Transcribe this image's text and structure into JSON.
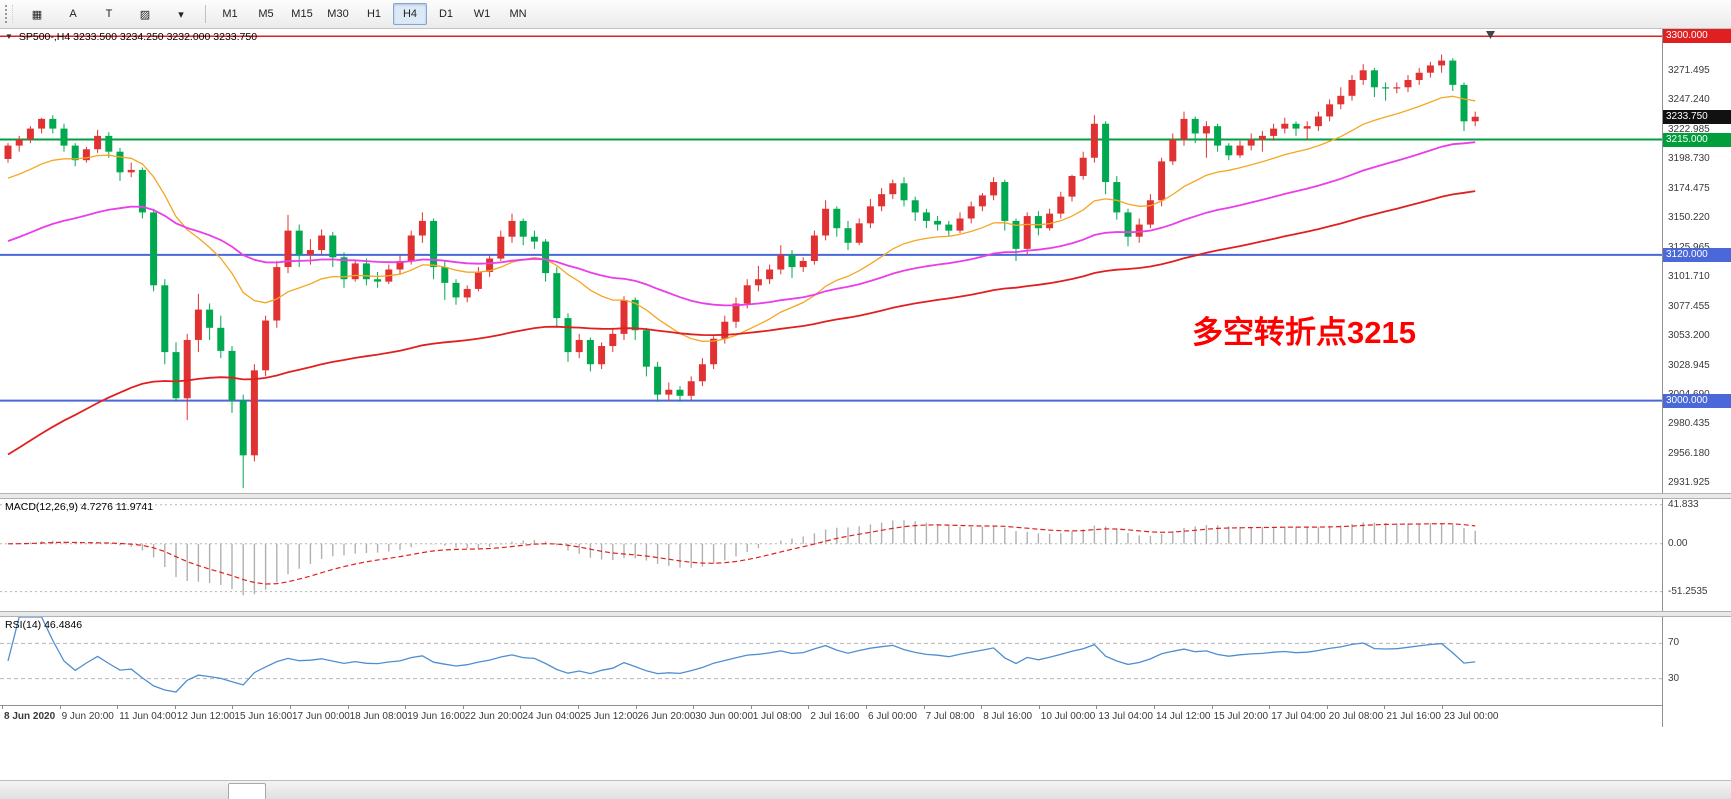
{
  "toolbar": {
    "icons": [
      {
        "name": "window-grid-icon",
        "glyph": "▦"
      },
      {
        "name": "text-a-icon",
        "glyph": "A"
      },
      {
        "name": "template-t-icon",
        "glyph": "T"
      },
      {
        "name": "colors-icon",
        "glyph": "▨"
      },
      {
        "name": "colors-dropdown-caret-icon",
        "glyph": "▾"
      }
    ],
    "timeframes": [
      "M1",
      "M5",
      "M15",
      "M30",
      "H1",
      "H4",
      "D1",
      "W1",
      "MN"
    ],
    "active_timeframe": "H4"
  },
  "main_chart": {
    "title_caret": "▼",
    "symbol": "SP500-,H4",
    "ohlc": "3233.500 3234.250 3232.000 3233.750",
    "annotation": "多空转折点3215",
    "annotation_color": "#ff0000"
  },
  "macd": {
    "label": "MACD(12,26,9) 4.7276 11.9741",
    "values": {
      "macd": "4.7276",
      "signal": "11.9741"
    },
    "axis": [
      {
        "v": 41.833,
        "label": "41.833"
      },
      {
        "v": 0,
        "label": "0.00"
      },
      {
        "v": -51.2535,
        "label": "-51.2535"
      }
    ]
  },
  "rsi": {
    "label": "RSI(14) 46.4846",
    "value": "46.4846",
    "axis": [
      {
        "v": 70,
        "label": "70"
      },
      {
        "v": 30,
        "label": "30"
      }
    ]
  },
  "price_axis": {
    "tick_start": 3295.75,
    "tick_step": 24.255,
    "tick_count": 16,
    "badges": [
      {
        "value": "3300.000",
        "price": 3300,
        "bg": "#e02020"
      },
      {
        "value": "3233.750",
        "price": 3233.75,
        "bg": "#111111"
      },
      {
        "value": "3215.000",
        "price": 3215,
        "bg": "#009f3c"
      },
      {
        "value": "3120.000",
        "price": 3120,
        "bg": "#4a68d8"
      },
      {
        "value": "3000.000",
        "price": 3000,
        "bg": "#4a68d8"
      }
    ]
  },
  "hlines": [
    {
      "price": 3300,
      "color": "#e02020",
      "width": 1.5
    },
    {
      "price": 3215,
      "color": "#009f3c",
      "width": 2
    },
    {
      "price": 3120,
      "color": "#4a68d8",
      "width": 2
    },
    {
      "price": 3000,
      "color": "#4a68d8",
      "width": 2
    }
  ],
  "colors": {
    "bull": "#e03232",
    "bear": "#00a94f",
    "ma_fast": "#f5a623",
    "ma_mid": "#e93ee9",
    "ma_slow": "#e02020",
    "macd_hist": "#b0b0b0",
    "macd_signal": "#e02020",
    "rsi_line": "#4f8fd0",
    "level_line": "#b5b5b5"
  },
  "time_axis": {
    "labels": [
      "8 Jun 2020",
      "9 Jun 20:00",
      "11 Jun 04:00",
      "12 Jun 12:00",
      "15 Jun 16:00",
      "17 Jun 00:00",
      "18 Jun 08:00",
      "19 Jun 16:00",
      "22 Jun 20:00",
      "24 Jun 04:00",
      "25 Jun 12:00",
      "26 Jun 20:00",
      "30 Jun 00:00",
      "1 Jul 08:00",
      "2 Jul 16:00",
      "6 Jul 00:00",
      "7 Jul 08:00",
      "8 Jul 16:00",
      "10 Jul 00:00",
      "13 Jul 04:00",
      "14 Jul 12:00",
      "15 Jul 20:00",
      "17 Jul 04:00",
      "20 Jul 08:00",
      "21 Jul 16:00",
      "23 Jul 00:00"
    ]
  },
  "chart_data": {
    "type": "candlestick",
    "symbol": "SP500-",
    "timeframe": "H4",
    "title": "SP500-,H4",
    "current_ohlc": [
      3233.5,
      3234.25,
      3232.0,
      3233.75
    ],
    "y_range": [
      2924,
      3306
    ],
    "horizontal_levels": [
      3300,
      3215,
      3120,
      3000
    ],
    "annotation": "多空转折点3215",
    "indicators": [
      {
        "name": "MACD",
        "params": "12,26,9",
        "values": [
          4.7276,
          11.9741
        ],
        "ylim": [
          -51.2535,
          41.833
        ]
      },
      {
        "name": "RSI",
        "params": "14",
        "value": 46.4846,
        "levels": [
          30,
          70
        ]
      }
    ],
    "moving_averages": [
      {
        "name": "fast",
        "period": 18,
        "seed": 3180,
        "width": 1.3
      },
      {
        "name": "mid",
        "period": 48,
        "seed": 3128,
        "width": 1.8
      },
      {
        "name": "slow",
        "period": 90,
        "seed": 2950,
        "width": 1.8
      }
    ],
    "x_labels": [
      "8 Jun 2020",
      "9 Jun 20:00",
      "11 Jun 04:00",
      "12 Jun 12:00",
      "15 Jun 16:00",
      "17 Jun 00:00",
      "18 Jun 08:00",
      "19 Jun 16:00",
      "22 Jun 20:00",
      "24 Jun 04:00",
      "25 Jun 12:00",
      "26 Jun 20:00",
      "30 Jun 00:00",
      "1 Jul 08:00",
      "2 Jul 16:00",
      "6 Jul 00:00",
      "7 Jul 08:00",
      "8 Jul 16:00",
      "10 Jul 00:00",
      "13 Jul 04:00",
      "14 Jul 12:00",
      "15 Jul 20:00",
      "17 Jul 04:00",
      "20 Jul 08:00",
      "21 Jul 16:00",
      "23 Jul 00:00"
    ],
    "candles": [
      [
        3199,
        3212,
        3196,
        3210
      ],
      [
        3210,
        3218,
        3205,
        3215
      ],
      [
        3215,
        3226,
        3212,
        3224
      ],
      [
        3224,
        3233,
        3220,
        3232
      ],
      [
        3232,
        3235,
        3220,
        3224
      ],
      [
        3224,
        3228,
        3205,
        3210
      ],
      [
        3210,
        3212,
        3193,
        3198
      ],
      [
        3198,
        3209,
        3196,
        3207
      ],
      [
        3207,
        3223,
        3204,
        3218
      ],
      [
        3218,
        3221,
        3200,
        3205
      ],
      [
        3205,
        3208,
        3181,
        3188
      ],
      [
        3188,
        3196,
        3184,
        3190
      ],
      [
        3190,
        3192,
        3150,
        3155
      ],
      [
        3155,
        3158,
        3090,
        3095
      ],
      [
        3095,
        3100,
        3030,
        3040
      ],
      [
        3040,
        3048,
        2999,
        3002
      ],
      [
        3002,
        3055,
        2984,
        3050
      ],
      [
        3050,
        3088,
        3040,
        3075
      ],
      [
        3075,
        3080,
        3050,
        3060
      ],
      [
        3060,
        3070,
        3035,
        3041
      ],
      [
        3041,
        3045,
        2990,
        3000
      ],
      [
        3000,
        3005,
        2928,
        2955
      ],
      [
        2955,
        3030,
        2950,
        3025
      ],
      [
        3025,
        3070,
        3020,
        3066
      ],
      [
        3066,
        3115,
        3060,
        3110
      ],
      [
        3110,
        3153,
        3105,
        3140
      ],
      [
        3140,
        3145,
        3110,
        3120
      ],
      [
        3120,
        3133,
        3112,
        3124
      ],
      [
        3124,
        3141,
        3120,
        3136
      ],
      [
        3136,
        3139,
        3110,
        3118
      ],
      [
        3118,
        3122,
        3093,
        3100
      ],
      [
        3100,
        3115,
        3098,
        3113
      ],
      [
        3113,
        3117,
        3095,
        3100
      ],
      [
        3100,
        3106,
        3093,
        3098
      ],
      [
        3098,
        3112,
        3096,
        3108
      ],
      [
        3108,
        3120,
        3104,
        3115
      ],
      [
        3115,
        3140,
        3112,
        3136
      ],
      [
        3136,
        3155,
        3130,
        3148
      ],
      [
        3148,
        3150,
        3100,
        3110
      ],
      [
        3110,
        3115,
        3083,
        3097
      ],
      [
        3097,
        3100,
        3079,
        3085
      ],
      [
        3085,
        3095,
        3081,
        3092
      ],
      [
        3092,
        3110,
        3090,
        3106
      ],
      [
        3106,
        3120,
        3102,
        3117
      ],
      [
        3117,
        3140,
        3115,
        3135
      ],
      [
        3135,
        3154,
        3130,
        3148
      ],
      [
        3148,
        3150,
        3128,
        3135
      ],
      [
        3135,
        3140,
        3125,
        3131
      ],
      [
        3131,
        3133,
        3098,
        3105
      ],
      [
        3105,
        3110,
        3060,
        3068
      ],
      [
        3068,
        3072,
        3032,
        3040
      ],
      [
        3040,
        3055,
        3035,
        3050
      ],
      [
        3050,
        3052,
        3024,
        3030
      ],
      [
        3030,
        3048,
        3026,
        3045
      ],
      [
        3045,
        3060,
        3040,
        3055
      ],
      [
        3055,
        3086,
        3050,
        3083
      ],
      [
        3083,
        3085,
        3050,
        3058
      ],
      [
        3058,
        3060,
        3020,
        3028
      ],
      [
        3028,
        3032,
        2999,
        3005
      ],
      [
        3005,
        3015,
        3000,
        3009
      ],
      [
        3009,
        3012,
        2999,
        3004
      ],
      [
        3004,
        3020,
        3000,
        3016
      ],
      [
        3016,
        3035,
        3012,
        3030
      ],
      [
        3030,
        3053,
        3026,
        3051
      ],
      [
        3051,
        3070,
        3047,
        3065
      ],
      [
        3065,
        3085,
        3060,
        3080
      ],
      [
        3080,
        3100,
        3076,
        3095
      ],
      [
        3095,
        3111,
        3090,
        3100
      ],
      [
        3100,
        3112,
        3096,
        3108
      ],
      [
        3108,
        3128,
        3104,
        3120
      ],
      [
        3120,
        3124,
        3101,
        3110
      ],
      [
        3110,
        3118,
        3106,
        3115
      ],
      [
        3115,
        3140,
        3112,
        3136
      ],
      [
        3136,
        3165,
        3132,
        3158
      ],
      [
        3158,
        3160,
        3135,
        3142
      ],
      [
        3142,
        3148,
        3124,
        3130
      ],
      [
        3130,
        3150,
        3128,
        3146
      ],
      [
        3146,
        3166,
        3142,
        3160
      ],
      [
        3160,
        3175,
        3156,
        3170
      ],
      [
        3170,
        3182,
        3166,
        3179
      ],
      [
        3179,
        3184,
        3160,
        3165
      ],
      [
        3165,
        3168,
        3148,
        3155
      ],
      [
        3155,
        3158,
        3142,
        3148
      ],
      [
        3148,
        3152,
        3140,
        3145
      ],
      [
        3145,
        3148,
        3136,
        3140
      ],
      [
        3140,
        3155,
        3138,
        3150
      ],
      [
        3150,
        3164,
        3146,
        3160
      ],
      [
        3160,
        3171,
        3156,
        3169
      ],
      [
        3169,
        3184,
        3165,
        3180
      ],
      [
        3180,
        3182,
        3140,
        3148
      ],
      [
        3148,
        3150,
        3115,
        3125
      ],
      [
        3125,
        3155,
        3120,
        3152
      ],
      [
        3152,
        3156,
        3136,
        3142
      ],
      [
        3142,
        3158,
        3140,
        3154
      ],
      [
        3154,
        3172,
        3150,
        3168
      ],
      [
        3168,
        3186,
        3164,
        3185
      ],
      [
        3185,
        3205,
        3182,
        3200
      ],
      [
        3200,
        3235,
        3196,
        3228
      ],
      [
        3228,
        3230,
        3170,
        3180
      ],
      [
        3180,
        3185,
        3149,
        3155
      ],
      [
        3155,
        3158,
        3127,
        3135
      ],
      [
        3135,
        3150,
        3130,
        3145
      ],
      [
        3145,
        3170,
        3142,
        3165
      ],
      [
        3165,
        3200,
        3160,
        3197
      ],
      [
        3197,
        3220,
        3194,
        3215
      ],
      [
        3215,
        3238,
        3210,
        3232
      ],
      [
        3232,
        3234,
        3212,
        3220
      ],
      [
        3220,
        3230,
        3200,
        3226
      ],
      [
        3226,
        3228,
        3205,
        3210
      ],
      [
        3210,
        3212,
        3198,
        3202
      ],
      [
        3202,
        3214,
        3200,
        3210
      ],
      [
        3210,
        3220,
        3206,
        3215
      ],
      [
        3215,
        3222,
        3205,
        3218
      ],
      [
        3218,
        3228,
        3214,
        3224
      ],
      [
        3224,
        3233,
        3220,
        3228
      ],
      [
        3228,
        3230,
        3218,
        3224
      ],
      [
        3224,
        3230,
        3215,
        3226
      ],
      [
        3226,
        3238,
        3222,
        3234
      ],
      [
        3234,
        3248,
        3230,
        3244
      ],
      [
        3244,
        3258,
        3240,
        3251
      ],
      [
        3251,
        3268,
        3247,
        3264
      ],
      [
        3264,
        3277,
        3260,
        3272
      ],
      [
        3272,
        3274,
        3250,
        3258
      ],
      [
        3258,
        3262,
        3247,
        3257
      ],
      [
        3257,
        3262,
        3253,
        3258
      ],
      [
        3258,
        3268,
        3254,
        3264
      ],
      [
        3264,
        3274,
        3260,
        3270
      ],
      [
        3270,
        3279,
        3266,
        3276
      ],
      [
        3276,
        3285,
        3270,
        3280
      ],
      [
        3280,
        3282,
        3255,
        3260
      ],
      [
        3260,
        3262,
        3222,
        3230
      ],
      [
        3230,
        3238,
        3226,
        3233.75
      ]
    ]
  }
}
